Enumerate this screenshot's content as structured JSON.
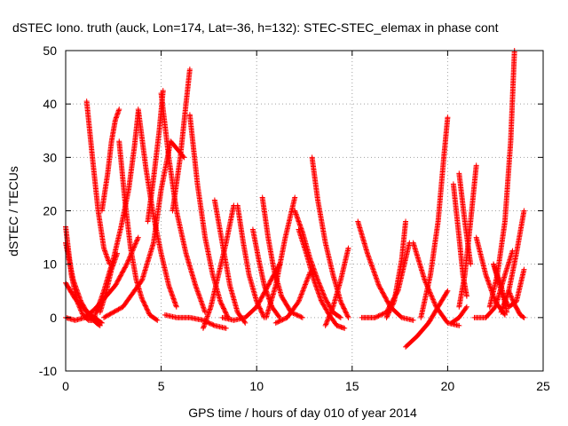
{
  "chart_data": {
    "type": "scatter",
    "title": "dSTEC Iono. truth (auck, Lon=174, Lat=-36, h=132): STEC-STEC_elemax in phase cont",
    "xlabel": "GPS time / hours of day 010 of year 2014",
    "ylabel": "dSTEC  / TECUs",
    "xlim": [
      0,
      25
    ],
    "ylim": [
      -10,
      50
    ],
    "xticks": [
      0,
      5,
      10,
      15,
      20,
      25
    ],
    "yticks": [
      -10,
      0,
      10,
      20,
      30,
      40,
      50
    ],
    "grid": true,
    "marker": "+",
    "color": "#ff0000",
    "series": [
      {
        "x": [
          0.0,
          0.3,
          0.6,
          0.9,
          1.2,
          1.5
        ],
        "y": [
          17.0,
          8.0,
          3.0,
          0.5,
          -0.5,
          -0.5
        ]
      },
      {
        "x": [
          0.0,
          0.4,
          0.8,
          1.2,
          1.6,
          1.8
        ],
        "y": [
          14.0,
          7.0,
          3.0,
          0.5,
          -1.0,
          -1.5
        ]
      },
      {
        "x": [
          0.0,
          0.5,
          1.0,
          1.5,
          1.9
        ],
        "y": [
          6.5,
          3.5,
          1.5,
          0.0,
          -1.0
        ]
      },
      {
        "x": [
          0.0,
          0.5,
          1.0,
          1.5,
          2.0,
          2.6,
          3.2,
          3.8
        ],
        "y": [
          0.0,
          -0.5,
          0.0,
          1.5,
          3.5,
          6.0,
          10.0,
          15.0
        ]
      },
      {
        "x": [
          1.1,
          1.4,
          1.7,
          2.0,
          2.3
        ],
        "y": [
          40.5,
          30.0,
          20.0,
          13.0,
          10.0
        ]
      },
      {
        "x": [
          1.8,
          2.1,
          2.4,
          2.7
        ],
        "y": [
          1.0,
          4.5,
          9.0,
          12.0
        ]
      },
      {
        "x": [
          1.5,
          2.0,
          2.5,
          2.9,
          3.3,
          3.6,
          3.8
        ],
        "y": [
          0.0,
          5.0,
          11.0,
          17.0,
          24.0,
          32.0,
          38.5
        ]
      },
      {
        "x": [
          1.9,
          2.2,
          2.4,
          2.6,
          2.8
        ],
        "y": [
          20.0,
          27.0,
          33.0,
          37.0,
          39.0
        ]
      },
      {
        "x": [
          2.8,
          3.1,
          3.4,
          3.7,
          4.0,
          4.4,
          4.8
        ],
        "y": [
          33.0,
          22.0,
          13.0,
          7.0,
          3.5,
          0.5,
          -0.5
        ]
      },
      {
        "x": [
          3.8,
          4.2,
          4.6,
          5.0,
          5.4,
          5.8
        ],
        "y": [
          39.0,
          28.0,
          19.0,
          12.0,
          6.0,
          2.0
        ]
      },
      {
        "x": [
          2.0,
          3.0,
          4.0,
          4.6,
          5.0,
          5.5,
          6.2
        ],
        "y": [
          0.0,
          2.0,
          7.0,
          14.0,
          24.0,
          33.0,
          30.0
        ]
      },
      {
        "x": [
          4.3,
          4.6,
          4.9,
          5.1
        ],
        "y": [
          18.0,
          26.0,
          35.0,
          42.5
        ]
      },
      {
        "x": [
          5.0,
          5.4,
          5.8,
          6.3,
          6.8,
          7.3
        ],
        "y": [
          42.0,
          30.0,
          20.0,
          12.0,
          6.0,
          1.0
        ]
      },
      {
        "x": [
          5.6,
          6.0,
          6.3,
          6.5
        ],
        "y": [
          20.0,
          30.0,
          40.0,
          46.5
        ]
      },
      {
        "x": [
          6.5,
          6.9,
          7.3,
          7.7,
          8.1,
          8.5
        ],
        "y": [
          38.0,
          25.0,
          15.0,
          8.0,
          3.0,
          0.0
        ]
      },
      {
        "x": [
          5.2,
          5.8,
          6.5,
          7.2,
          7.8,
          8.4
        ],
        "y": [
          0.5,
          0.0,
          0.0,
          -0.5,
          -1.5,
          -2.0
        ]
      },
      {
        "x": [
          7.8,
          8.2,
          8.6,
          9.0,
          9.4
        ],
        "y": [
          22.0,
          14.0,
          6.0,
          1.0,
          -1.0
        ]
      },
      {
        "x": [
          7.2,
          7.6,
          8.0,
          8.4,
          8.8
        ],
        "y": [
          -2.0,
          2.0,
          8.0,
          14.0,
          21.0
        ]
      },
      {
        "x": [
          9.0,
          9.3,
          9.6,
          10.0,
          10.4
        ],
        "y": [
          21.0,
          14.0,
          8.0,
          3.0,
          0.0
        ]
      },
      {
        "x": [
          8.2,
          8.8,
          9.4,
          10.0,
          10.6,
          11.2
        ],
        "y": [
          0.0,
          -0.5,
          0.0,
          2.0,
          6.0,
          10.0
        ]
      },
      {
        "x": [
          9.8,
          10.1,
          10.4,
          10.8,
          11.2
        ],
        "y": [
          16.5,
          11.0,
          6.0,
          2.0,
          0.0
        ]
      },
      {
        "x": [
          10.3,
          10.6,
          10.9,
          11.3,
          11.8,
          12.4
        ],
        "y": [
          22.5,
          15.0,
          9.0,
          4.0,
          1.0,
          0.0
        ]
      },
      {
        "x": [
          10.5,
          11.0,
          11.5,
          12.0
        ],
        "y": [
          0.0,
          6.0,
          15.0,
          22.5
        ]
      },
      {
        "x": [
          12.0,
          12.4,
          12.8,
          13.2,
          13.6,
          14.0,
          14.4
        ],
        "y": [
          20.0,
          16.0,
          11.0,
          7.0,
          3.5,
          1.0,
          0.0
        ]
      },
      {
        "x": [
          11.0,
          11.6,
          12.2,
          12.8
        ],
        "y": [
          -1.0,
          0.0,
          3.0,
          8.5
        ]
      },
      {
        "x": [
          12.9,
          13.2,
          13.6,
          14.0,
          14.4,
          14.8
        ],
        "y": [
          30.0,
          22.0,
          14.0,
          8.0,
          3.0,
          0.0
        ]
      },
      {
        "x": [
          12.2,
          12.6,
          13.0,
          13.4,
          13.8,
          14.2,
          14.6
        ],
        "y": [
          16.5,
          12.0,
          7.0,
          3.0,
          0.5,
          -1.5,
          -2.0
        ]
      },
      {
        "x": [
          13.6,
          14.0,
          14.4,
          14.8
        ],
        "y": [
          -1.5,
          2.0,
          7.0,
          13.0
        ]
      },
      {
        "x": [
          15.3,
          15.8,
          16.4,
          17.0,
          17.6,
          18.2
        ],
        "y": [
          18.0,
          12.0,
          6.0,
          2.0,
          0.0,
          -0.5
        ]
      },
      {
        "x": [
          15.5,
          16.2,
          16.8,
          17.4,
          18.0
        ],
        "y": [
          0.0,
          0.0,
          1.0,
          5.0,
          14.0
        ]
      },
      {
        "x": [
          16.8,
          17.2,
          17.6,
          17.8
        ],
        "y": [
          0.0,
          3.0,
          11.0,
          18.0
        ]
      },
      {
        "x": [
          17.8,
          18.4,
          19.0,
          19.5,
          20.0
        ],
        "y": [
          -5.5,
          -3.5,
          -1.0,
          2.0,
          5.0
        ]
      },
      {
        "x": [
          18.2,
          18.8,
          19.4,
          20.0,
          20.6
        ],
        "y": [
          14.0,
          7.0,
          2.0,
          -1.0,
          -1.5
        ]
      },
      {
        "x": [
          18.6,
          19.1,
          19.5,
          19.8,
          20.0
        ],
        "y": [
          0.0,
          8.0,
          18.0,
          30.0,
          37.5
        ]
      },
      {
        "x": [
          20.3,
          20.6,
          20.8,
          21.0
        ],
        "y": [
          25.0,
          15.0,
          8.0,
          4.0
        ]
      },
      {
        "x": [
          20.6,
          20.9,
          21.2
        ],
        "y": [
          27.0,
          18.0,
          10.0
        ]
      },
      {
        "x": [
          20.6,
          20.9,
          21.2,
          21.5
        ],
        "y": [
          2.0,
          8.0,
          18.0,
          28.5
        ]
      },
      {
        "x": [
          20.2,
          20.6,
          21.0
        ],
        "y": [
          -1.0,
          0.0,
          2.0
        ]
      },
      {
        "x": [
          21.5,
          22.0,
          22.5,
          23.0
        ],
        "y": [
          15.0,
          8.0,
          3.0,
          0.5
        ]
      },
      {
        "x": [
          21.4,
          22.0,
          22.5,
          23.0,
          23.4
        ],
        "y": [
          0.0,
          0.0,
          2.0,
          8.0,
          12.5
        ]
      },
      {
        "x": [
          22.2,
          22.6,
          23.0,
          23.3,
          23.5
        ],
        "y": [
          2.0,
          8.0,
          18.0,
          33.0,
          50.0
        ]
      },
      {
        "x": [
          22.4,
          22.8,
          23.1
        ],
        "y": [
          10.0,
          6.0,
          1.0
        ]
      },
      {
        "x": [
          23.2,
          23.5,
          23.8,
          24.0
        ],
        "y": [
          5.0,
          2.5,
          0.5,
          0.0
        ]
      },
      {
        "x": [
          22.8,
          23.2,
          23.6,
          24.0
        ],
        "y": [
          1.0,
          5.0,
          12.0,
          20.0
        ]
      },
      {
        "x": [
          22.4,
          22.8,
          23.2,
          23.6,
          24.0
        ],
        "y": [
          10.0,
          5.0,
          2.0,
          3.0,
          9.0
        ]
      }
    ]
  }
}
